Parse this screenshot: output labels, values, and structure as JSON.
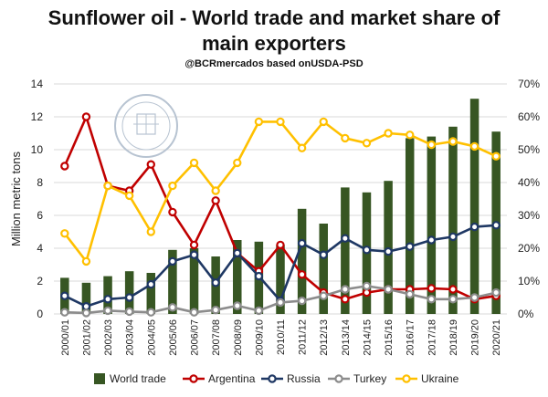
{
  "chart_data": {
    "type": "bar+line",
    "title_line1": "Sunflower oil - World trade and market share of",
    "title_line2": "main exporters",
    "subtitle": "@BCRmercados based onUSDA-PSD",
    "ylabel": "Million metric tons",
    "ylim": [
      0,
      14
    ],
    "y_ticks": [
      "0",
      "2",
      "4",
      "6",
      "8",
      "10",
      "12",
      "14"
    ],
    "y2lim": [
      0,
      70
    ],
    "y2_ticks": [
      "0%",
      "10%",
      "20%",
      "30%",
      "40%",
      "50%",
      "60%",
      "70%"
    ],
    "categories": [
      "2000/01",
      "2001/02",
      "2002/03",
      "2003/04",
      "2004/05",
      "2005/06",
      "2006/07",
      "2007/08",
      "2008/09",
      "2009/10",
      "2010/11",
      "2011/12",
      "2012/13",
      "2013/14",
      "2014/15",
      "2015/16",
      "2016/17",
      "2017/18",
      "2018/19",
      "2019/20",
      "2020/21"
    ],
    "bars": {
      "name": "World trade",
      "axis": "left",
      "color": "#375623",
      "values": [
        2.2,
        1.9,
        2.3,
        2.6,
        2.5,
        3.9,
        4.0,
        3.5,
        4.5,
        4.4,
        4.2,
        6.4,
        5.5,
        7.7,
        7.4,
        8.1,
        10.7,
        10.8,
        11.4,
        13.1,
        11.1
      ]
    },
    "series": [
      {
        "name": "Argentina",
        "axis": "right",
        "color": "#c00000",
        "values": [
          45,
          60,
          39,
          37.5,
          45.5,
          31,
          21,
          34.5,
          18.5,
          13,
          21,
          12,
          6.5,
          4.5,
          6.5,
          7.5,
          7.5,
          7.8,
          7.5,
          4.5,
          5.5
        ]
      },
      {
        "name": "Russia",
        "axis": "right",
        "color": "#1f3864",
        "values": [
          5.5,
          2.3,
          4.5,
          5,
          9,
          16,
          18,
          9.5,
          18.5,
          11.5,
          4,
          21.5,
          18,
          23,
          19.5,
          19,
          20.5,
          22.5,
          23.5,
          26.5,
          27
        ]
      },
      {
        "name": "Turkey",
        "axis": "right",
        "color": "#8c8c8c",
        "values": [
          0.5,
          0.3,
          1,
          0.7,
          0.5,
          2,
          0.5,
          1.2,
          2.5,
          1,
          3.5,
          4,
          5.5,
          7.5,
          8.5,
          7.5,
          6,
          4.5,
          4.5,
          5,
          6.5
        ]
      },
      {
        "name": "Ukraine",
        "axis": "right",
        "color": "#ffc000",
        "values": [
          24.5,
          16,
          39,
          36,
          25,
          39,
          46,
          37.5,
          46,
          58.5,
          58.5,
          50.5,
          58.5,
          53.5,
          52,
          55,
          54.5,
          51.5,
          52.5,
          51,
          48
        ]
      }
    ],
    "legend": [
      "World trade",
      "Argentina",
      "Russia",
      "Turkey",
      "Ukraine"
    ],
    "legend_position": "bottom"
  },
  "watermark": {
    "text": "BOLSA DE COMERCIO DE ROSARIO"
  }
}
